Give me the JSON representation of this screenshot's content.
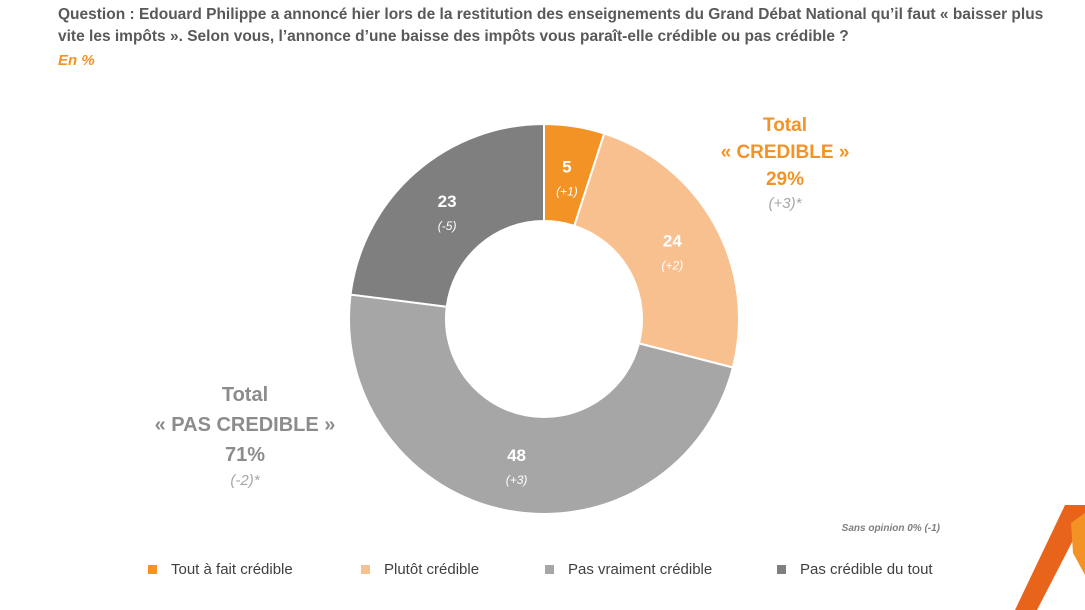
{
  "header": {
    "question": "Question : Edouard Philippe a annoncé hier lors de la restitution des enseignements du Grand Débat National qu’il faut « baisser plus vite les impôts ». Selon vous, l’annonce d’une baisse des impôts vous paraît-elle crédible ou pas crédible ?",
    "unit": "En %"
  },
  "chart_data": {
    "type": "pie",
    "donut": true,
    "unit": "%",
    "categories": [
      "Tout à fait crédible",
      "Plutôt crédible",
      "Pas vraiment crédible",
      "Pas crédible du tout"
    ],
    "values": [
      5,
      24,
      48,
      23
    ],
    "deltas": [
      "(+1)",
      "(+2)",
      "(+3)",
      "(-5)"
    ],
    "colors": [
      "#F39325",
      "#F9C08F",
      "#A6A6A6",
      "#7F7F7F"
    ],
    "label_colors": [
      "#ffffff",
      "#ffffff",
      "#ffffff",
      "#ffffff"
    ],
    "legend_position": "bottom"
  },
  "totals": {
    "credible": {
      "line1": "Total",
      "line2": "« CREDIBLE »",
      "value": "29%",
      "delta": "(+3)*"
    },
    "pas_credible": {
      "line1": "Total",
      "line2": "« PAS CREDIBLE »",
      "value": "71%",
      "delta": "(-2)*"
    }
  },
  "footnote": "Sans opinion 0% (-1)",
  "legend": [
    {
      "label": "Tout à fait crédible",
      "color": "#F39325"
    },
    {
      "label": "Plutôt crédible",
      "color": "#F9C08F"
    },
    {
      "label": "Pas vraiment crédible",
      "color": "#A6A6A6"
    },
    {
      "label": "Pas crédible du tout",
      "color": "#7F7F7F"
    }
  ],
  "brand_colors": {
    "orange": "#F39325",
    "dark_orange": "#E8641B"
  }
}
